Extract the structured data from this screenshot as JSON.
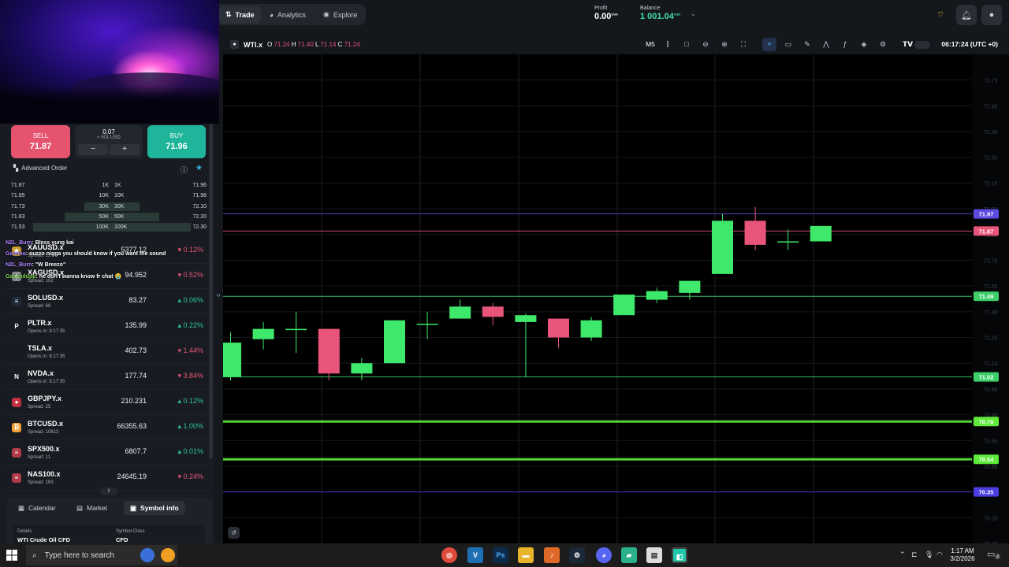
{
  "nav": {
    "tabs": [
      {
        "label": "Trade",
        "icon": "trade-icon"
      },
      {
        "label": "Analytics",
        "icon": "analytics-icon"
      },
      {
        "label": "Explore",
        "icon": "explore-icon"
      }
    ]
  },
  "account": {
    "profit_label": "Profit",
    "profit_value": "0.00",
    "profit_ccy": "USD",
    "balance_label": "Balance",
    "balance_value": "1 001.04",
    "balance_ccy": "USD"
  },
  "order": {
    "sell_label": "SELL",
    "sell_price": "71.87",
    "buy_label": "BUY",
    "buy_price": "71.96",
    "volume": "0.07",
    "volume_usd": "≈ 501 USD",
    "minus": "−",
    "plus": "+",
    "advanced_label": "Advanced Order"
  },
  "order_book": [
    {
      "bid": "71.87",
      "bid_vol": "1K",
      "ask_vol": "1K",
      "ask": "71.96",
      "depth": 0
    },
    {
      "bid": "71.85",
      "bid_vol": "10K",
      "ask_vol": "10K",
      "ask": "71.98",
      "depth": 0
    },
    {
      "bid": "71.73",
      "bid_vol": "30K",
      "ask_vol": "30K",
      "ask": "72.10",
      "depth": 0.35
    },
    {
      "bid": "71.63",
      "bid_vol": "50K",
      "ask_vol": "50K",
      "ask": "72.20",
      "depth": 0.6
    },
    {
      "bid": "71.53",
      "bid_vol": "100K",
      "ask_vol": "100K",
      "ask": "72.30",
      "depth": 1.0
    }
  ],
  "symbols": [
    {
      "name": "XAUUSD.x",
      "sub": "Spread: 12",
      "price": "5377.12",
      "change": "0.12%",
      "dir": "down",
      "icon": "gold-icon",
      "icon_char": "◆",
      "icon_bg": "#c89b2a"
    },
    {
      "name": "XAGUSD.x",
      "sub": "Spread: 102",
      "price": "94.952",
      "change": "0.52%",
      "dir": "down",
      "icon": "silver-icon",
      "icon_char": "◆",
      "icon_bg": "#8a8f96"
    },
    {
      "name": "SOLUSD.x",
      "sub": "Spread: 68",
      "price": "83.27",
      "change": "0.06%",
      "dir": "up",
      "icon": "solana-icon",
      "icon_char": "≡",
      "icon_bg": "#1e2a3a"
    },
    {
      "name": "PLTR.x",
      "sub": "Opens in: 8:17:35",
      "price": "135.99",
      "change": "0.22%",
      "dir": "up",
      "icon": "palantir-icon",
      "icon_char": "P",
      "icon_bg": "#181b21"
    },
    {
      "name": "TSLA.x",
      "sub": "Opens in: 8:17:35",
      "price": "402.73",
      "change": "1.44%",
      "dir": "down",
      "icon": "tesla-icon",
      "icon_char": "",
      "icon_bg": "#181b21"
    },
    {
      "name": "NVDA.x",
      "sub": "Opens in: 8:17:35",
      "price": "177.74",
      "change": "3.84%",
      "dir": "down",
      "icon": "nvidia-icon",
      "icon_char": "N",
      "icon_bg": "#181b21"
    },
    {
      "name": "GBPJPY.x",
      "sub": "Spread: 25",
      "price": "210.231",
      "change": "0.12%",
      "dir": "up",
      "icon": "gbp-flag-icon",
      "icon_char": "●",
      "icon_bg": "#c0303f"
    },
    {
      "name": "BTCUSD.x",
      "sub": "Spread: 10613",
      "price": "66355.63",
      "change": "1.00%",
      "dir": "up",
      "icon": "bitcoin-icon",
      "icon_char": "₿",
      "icon_bg": "#f2a13a"
    },
    {
      "name": "SPX500.x",
      "sub": "Spread: 11",
      "price": "6807.7",
      "change": "0.01%",
      "dir": "up",
      "icon": "us-flag-icon",
      "icon_char": "≡",
      "icon_bg": "#b03a48"
    },
    {
      "name": "NAS100.x",
      "sub": "Spread: 163",
      "price": "24645.19",
      "change": "0.24%",
      "dir": "down",
      "icon": "us-flag-icon",
      "icon_char": "≡",
      "icon_bg": "#b03a48"
    }
  ],
  "chat": [
    {
      "user": "N2L_Burn",
      "msg": "Bless yung kai"
    },
    {
      "user": "Gamma",
      "msg": "ouzzo nigga you should know if you want the sound"
    },
    {
      "user": "N2L_Burn",
      "msg": "\"W Breezo\""
    },
    {
      "user": "Gaaandupp",
      "msg": "he don't wanna know fr chat 😭"
    }
  ],
  "bottom_tabs": [
    {
      "label": "Calendar",
      "icon": "calendar-icon"
    },
    {
      "label": "Market",
      "icon": "market-icon"
    },
    {
      "label": "Symbol info",
      "icon": "info-icon"
    }
  ],
  "details": {
    "details_label": "Details",
    "details_value": "WTI Crude Oil CFD",
    "class_label": "Symbol Class",
    "class_value": "CFD"
  },
  "chart_header": {
    "symbol": "WTI.x",
    "o_label": "O",
    "o": "71.24",
    "h_label": "H",
    "h": "71.40",
    "l_label": "L",
    "l": "71.14",
    "c_label": "C",
    "c": "71.24",
    "timeframe": "M5",
    "clock": "06:17:24 (UTC +0)"
  },
  "chart_data": {
    "type": "candlestick",
    "symbol": "WTI.x",
    "timeframe": "M5",
    "ylim": [
      70.05,
      72.9
    ],
    "candles": [
      {
        "o": 71.02,
        "h": 71.28,
        "l": 71.0,
        "c": 71.22
      },
      {
        "o": 71.24,
        "h": 71.34,
        "l": 71.18,
        "c": 71.3
      },
      {
        "o": 71.3,
        "h": 71.4,
        "l": 71.16,
        "c": 71.3
      },
      {
        "o": 71.3,
        "h": 71.3,
        "l": 71.0,
        "c": 71.04
      },
      {
        "o": 71.04,
        "h": 71.13,
        "l": 71.0,
        "c": 71.1
      },
      {
        "o": 71.1,
        "h": 71.35,
        "l": 71.1,
        "c": 71.35
      },
      {
        "o": 71.33,
        "h": 71.4,
        "l": 71.24,
        "c": 71.33
      },
      {
        "o": 71.36,
        "h": 71.47,
        "l": 71.36,
        "c": 71.43
      },
      {
        "o": 71.43,
        "h": 71.45,
        "l": 71.32,
        "c": 71.37
      },
      {
        "o": 71.34,
        "h": 71.39,
        "l": 71.02,
        "c": 71.38
      },
      {
        "o": 71.36,
        "h": 71.36,
        "l": 71.19,
        "c": 71.25
      },
      {
        "o": 71.25,
        "h": 71.37,
        "l": 71.23,
        "c": 71.35
      },
      {
        "o": 71.38,
        "h": 71.5,
        "l": 71.38,
        "c": 71.5
      },
      {
        "o": 71.47,
        "h": 71.54,
        "l": 71.45,
        "c": 71.52
      },
      {
        "o": 71.51,
        "h": 71.58,
        "l": 71.47,
        "c": 71.58
      },
      {
        "o": 71.62,
        "h": 71.97,
        "l": 71.62,
        "c": 71.93
      },
      {
        "o": 71.93,
        "h": 72.01,
        "l": 71.76,
        "c": 71.79
      },
      {
        "o": 71.81,
        "h": 71.88,
        "l": 71.76,
        "c": 71.81
      },
      {
        "o": 71.81,
        "h": 71.9,
        "l": 71.81,
        "c": 71.9
      }
    ],
    "price_lines": [
      {
        "price": "71.97",
        "color": "#5a4ae0"
      },
      {
        "price": "71.87",
        "color": "#e9557a"
      },
      {
        "price": "71.49",
        "color": "#3ecf6a"
      },
      {
        "price": "71.02",
        "color": "#3ecf6a"
      },
      {
        "price": "70.76",
        "color": "#5eea3a"
      },
      {
        "price": "70.54",
        "color": "#5eea3a"
      },
      {
        "price": "70.35",
        "color": "#4a3ee0"
      }
    ],
    "up_color": "#3ee86a",
    "down_color": "#e9557a"
  },
  "taskbar": {
    "search_placeholder": "Type here to search",
    "time": "1:17 AM",
    "date": "3/2/2026",
    "notif_count": "2"
  }
}
